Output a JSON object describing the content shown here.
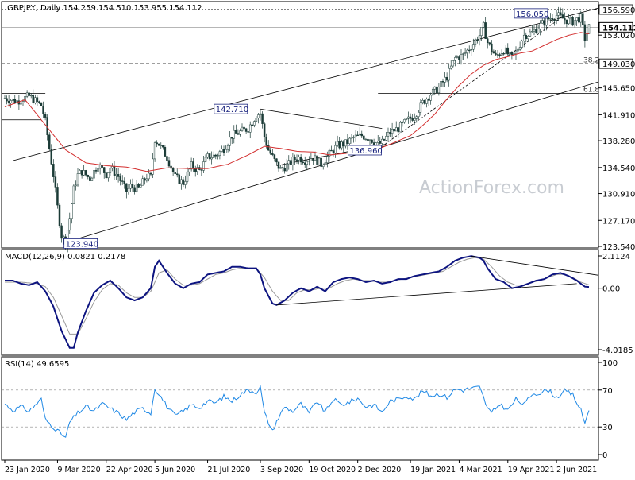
{
  "chart_data": {
    "type": "candlestick",
    "symbol_header": ".GBPJPY, Daily  154.259 154.510 153.955 154.112",
    "watermark": "ActionForex.com",
    "x_tick_labels": [
      "23 Jan 2020",
      "9 Mar 2020",
      "22 Apr 2020",
      "5 Jun 2020",
      "21 Jul 2020",
      "3 Sep 2020",
      "19 Oct 2020",
      "2 Dec 2020",
      "19 Jan 2021",
      "4 Mar 2021",
      "19 Apr 2021",
      "2 Jun 2021"
    ],
    "price_panel": {
      "ylim": [
        123.54,
        156.59
      ],
      "y_tick_labels": [
        "156.590",
        "153.020",
        "149.030",
        "145.650",
        "141.910",
        "138.280",
        "134.540",
        "130.910",
        "127.170",
        "123.540"
      ],
      "current_price": "154.112",
      "resistance": "156.590",
      "support": "149.030",
      "fib_levels": [
        {
          "label": "38.2",
          "value": 149.0
        },
        {
          "label": "61.8",
          "value": 144.9
        }
      ],
      "annotations": [
        {
          "label": "123.940",
          "value": 123.94
        },
        {
          "label": "142.710",
          "value": 142.71
        },
        {
          "label": "136.960",
          "value": 136.96
        },
        {
          "label": "156.050",
          "value": 156.05
        }
      ],
      "series_close": [
        [
          0,
          144.2
        ],
        [
          3,
          143.8
        ],
        [
          6,
          144.5
        ],
        [
          9,
          143.2
        ],
        [
          10,
          141.0
        ],
        [
          11,
          137.2
        ],
        [
          12,
          133.5
        ],
        [
          13,
          129.0
        ],
        [
          14,
          125.0
        ],
        [
          15,
          124.2
        ],
        [
          16,
          127.5
        ],
        [
          17,
          131.5
        ],
        [
          18,
          133.5
        ],
        [
          19,
          134.0
        ],
        [
          21,
          133.0
        ],
        [
          23,
          135.0
        ],
        [
          25,
          133.6
        ],
        [
          26,
          134.5
        ],
        [
          28,
          133.3
        ],
        [
          30,
          131.2
        ],
        [
          31,
          131.9
        ],
        [
          33,
          131.6
        ],
        [
          35,
          133.3
        ],
        [
          36,
          133.2
        ],
        [
          37,
          138.5
        ],
        [
          38,
          137.8
        ],
        [
          40,
          136.0
        ],
        [
          42,
          133.2
        ],
        [
          44,
          132.4
        ],
        [
          46,
          134.8
        ],
        [
          48,
          134.1
        ],
        [
          50,
          136.0
        ],
        [
          52,
          136.2
        ],
        [
          54,
          137.2
        ],
        [
          56,
          139.0
        ],
        [
          58,
          139.5
        ],
        [
          60,
          140.0
        ],
        [
          62,
          141.9
        ],
        [
          63,
          142.1
        ],
        [
          64,
          138.8
        ],
        [
          65,
          137.0
        ],
        [
          66,
          136.0
        ],
        [
          67,
          135.0
        ],
        [
          68,
          134.3
        ],
        [
          70,
          135.0
        ],
        [
          72,
          136.0
        ],
        [
          74,
          135.6
        ],
        [
          76,
          136.0
        ],
        [
          78,
          135.0
        ],
        [
          80,
          136.4
        ],
        [
          82,
          137.6
        ],
        [
          84,
          137.9
        ],
        [
          86,
          138.7
        ],
        [
          88,
          139.0
        ],
        [
          90,
          138.6
        ],
        [
          92,
          137.8
        ],
        [
          93,
          138.0
        ],
        [
          95,
          139.5
        ],
        [
          97,
          140.0
        ],
        [
          99,
          141.0
        ],
        [
          101,
          141.8
        ],
        [
          103,
          143.6
        ],
        [
          105,
          144.8
        ],
        [
          107,
          145.7
        ],
        [
          109,
          147.2
        ],
        [
          111,
          149.8
        ],
        [
          113,
          150.2
        ],
        [
          115,
          151.5
        ],
        [
          117,
          153.0
        ],
        [
          118,
          154.2
        ],
        [
          119,
          152.0
        ],
        [
          120,
          151.0
        ],
        [
          121,
          150.0
        ],
        [
          123,
          151.0
        ],
        [
          125,
          149.8
        ],
        [
          126,
          150.6
        ],
        [
          128,
          153.0
        ],
        [
          130,
          153.4
        ],
        [
          132,
          154.4
        ],
        [
          134,
          155.3
        ],
        [
          136,
          155.8
        ],
        [
          138,
          155.2
        ],
        [
          140,
          154.9
        ],
        [
          142,
          155.5
        ],
        [
          143,
          152.5
        ],
        [
          144,
          154.112
        ]
      ],
      "ma_series": [
        [
          0,
          143.0
        ],
        [
          5,
          144.0
        ],
        [
          10,
          140.5
        ],
        [
          15,
          137.0
        ],
        [
          20,
          135.2
        ],
        [
          25,
          134.8
        ],
        [
          30,
          134.6
        ],
        [
          35,
          134.0
        ],
        [
          40,
          134.5
        ],
        [
          45,
          134.4
        ],
        [
          50,
          134.4
        ],
        [
          55,
          135.0
        ],
        [
          60,
          136.3
        ],
        [
          64,
          137.5
        ],
        [
          68,
          137.2
        ],
        [
          72,
          136.8
        ],
        [
          76,
          136.7
        ],
        [
          80,
          136.3
        ],
        [
          84,
          136.5
        ],
        [
          88,
          137.0
        ],
        [
          92,
          137.1
        ],
        [
          95,
          137.8
        ],
        [
          100,
          139.0
        ],
        [
          103,
          140.4
        ],
        [
          106,
          142.0
        ],
        [
          109,
          144.1
        ],
        [
          112,
          146.0
        ],
        [
          115,
          147.6
        ],
        [
          118,
          148.8
        ],
        [
          121,
          149.6
        ],
        [
          124,
          150.0
        ],
        [
          127,
          150.5
        ],
        [
          130,
          150.8
        ],
        [
          133,
          151.6
        ],
        [
          136,
          152.4
        ],
        [
          139,
          153.0
        ],
        [
          142,
          153.4
        ],
        [
          144,
          153.2
        ]
      ]
    },
    "macd_panel": {
      "label": "MACD(12,26,9) 0.0821 0.2178",
      "ylim": [
        -4.0185,
        2.1124
      ],
      "y_tick_labels": [
        "2.1124",
        "0.00",
        "-4.0185"
      ],
      "macd_series": [
        [
          0,
          0.5
        ],
        [
          2,
          0.5
        ],
        [
          4,
          0.3
        ],
        [
          6,
          0.2
        ],
        [
          8,
          0.4
        ],
        [
          10,
          -0.2
        ],
        [
          12,
          -1.2
        ],
        [
          14,
          -2.8
        ],
        [
          16,
          -3.9
        ],
        [
          17,
          -3.9
        ],
        [
          18,
          -2.9
        ],
        [
          20,
          -1.5
        ],
        [
          22,
          -0.3
        ],
        [
          24,
          0.2
        ],
        [
          26,
          0.5
        ],
        [
          28,
          0.0
        ],
        [
          30,
          -0.6
        ],
        [
          32,
          -0.8
        ],
        [
          34,
          -0.6
        ],
        [
          36,
          0.0
        ],
        [
          37,
          1.4
        ],
        [
          38,
          1.8
        ],
        [
          40,
          1.0
        ],
        [
          42,
          0.3
        ],
        [
          44,
          0.0
        ],
        [
          46,
          0.3
        ],
        [
          48,
          0.4
        ],
        [
          50,
          0.9
        ],
        [
          52,
          1.0
        ],
        [
          54,
          1.1
        ],
        [
          56,
          1.4
        ],
        [
          58,
          1.4
        ],
        [
          60,
          1.3
        ],
        [
          62,
          1.3
        ],
        [
          63,
          0.9
        ],
        [
          64,
          0.0
        ],
        [
          65,
          -0.5
        ],
        [
          66,
          -1.0
        ],
        [
          67,
          -1.1
        ],
        [
          69,
          -0.8
        ],
        [
          71,
          -0.3
        ],
        [
          73,
          0.0
        ],
        [
          75,
          -0.2
        ],
        [
          77,
          0.1
        ],
        [
          79,
          -0.2
        ],
        [
          81,
          0.4
        ],
        [
          83,
          0.6
        ],
        [
          85,
          0.7
        ],
        [
          87,
          0.6
        ],
        [
          89,
          0.4
        ],
        [
          91,
          0.5
        ],
        [
          93,
          0.3
        ],
        [
          95,
          0.4
        ],
        [
          97,
          0.6
        ],
        [
          99,
          0.6
        ],
        [
          101,
          0.8
        ],
        [
          103,
          0.9
        ],
        [
          105,
          1.0
        ],
        [
          107,
          1.1
        ],
        [
          109,
          1.4
        ],
        [
          111,
          1.8
        ],
        [
          113,
          2.0
        ],
        [
          115,
          2.1
        ],
        [
          117,
          2.0
        ],
        [
          118,
          1.8
        ],
        [
          119,
          1.3
        ],
        [
          121,
          0.6
        ],
        [
          123,
          0.4
        ],
        [
          125,
          0.0
        ],
        [
          127,
          0.1
        ],
        [
          129,
          0.3
        ],
        [
          131,
          0.5
        ],
        [
          133,
          0.6
        ],
        [
          135,
          0.9
        ],
        [
          137,
          1.0
        ],
        [
          139,
          0.8
        ],
        [
          141,
          0.5
        ],
        [
          143,
          0.1
        ],
        [
          144,
          0.08
        ]
      ],
      "signal_series": [
        [
          0,
          0.4
        ],
        [
          4,
          0.4
        ],
        [
          8,
          0.3
        ],
        [
          10,
          0.1
        ],
        [
          12,
          -0.6
        ],
        [
          14,
          -1.8
        ],
        [
          16,
          -3.0
        ],
        [
          18,
          -3.0
        ],
        [
          20,
          -2.0
        ],
        [
          22,
          -0.9
        ],
        [
          24,
          -0.1
        ],
        [
          26,
          0.3
        ],
        [
          28,
          0.2
        ],
        [
          30,
          -0.3
        ],
        [
          32,
          -0.6
        ],
        [
          34,
          -0.6
        ],
        [
          36,
          -0.2
        ],
        [
          38,
          1.0
        ],
        [
          40,
          1.2
        ],
        [
          42,
          0.6
        ],
        [
          44,
          0.2
        ],
        [
          46,
          0.2
        ],
        [
          48,
          0.3
        ],
        [
          50,
          0.6
        ],
        [
          52,
          0.9
        ],
        [
          54,
          1.0
        ],
        [
          56,
          1.2
        ],
        [
          58,
          1.3
        ],
        [
          60,
          1.3
        ],
        [
          62,
          1.3
        ],
        [
          64,
          0.7
        ],
        [
          66,
          -0.2
        ],
        [
          68,
          -0.8
        ],
        [
          70,
          -0.8
        ],
        [
          72,
          -0.3
        ],
        [
          74,
          -0.1
        ],
        [
          76,
          -0.1
        ],
        [
          78,
          0.0
        ],
        [
          80,
          0.0
        ],
        [
          82,
          0.3
        ],
        [
          84,
          0.5
        ],
        [
          86,
          0.6
        ],
        [
          88,
          0.5
        ],
        [
          90,
          0.5
        ],
        [
          92,
          0.4
        ],
        [
          94,
          0.4
        ],
        [
          96,
          0.5
        ],
        [
          98,
          0.6
        ],
        [
          100,
          0.7
        ],
        [
          102,
          0.8
        ],
        [
          104,
          0.9
        ],
        [
          106,
          1.0
        ],
        [
          108,
          1.1
        ],
        [
          110,
          1.4
        ],
        [
          112,
          1.7
        ],
        [
          114,
          1.9
        ],
        [
          116,
          2.0
        ],
        [
          118,
          1.9
        ],
        [
          120,
          1.4
        ],
        [
          122,
          0.8
        ],
        [
          124,
          0.4
        ],
        [
          126,
          0.2
        ],
        [
          128,
          0.2
        ],
        [
          130,
          0.4
        ],
        [
          132,
          0.5
        ],
        [
          134,
          0.7
        ],
        [
          136,
          0.9
        ],
        [
          138,
          0.9
        ],
        [
          140,
          0.7
        ],
        [
          142,
          0.4
        ],
        [
          144,
          0.22
        ]
      ]
    },
    "rsi_panel": {
      "label": "RSI(14) 49.6595",
      "ylim": [
        0,
        100
      ],
      "y_tick_labels": [
        "100",
        "70",
        "30",
        "0"
      ],
      "rsi_series": [
        [
          0,
          55
        ],
        [
          2,
          48
        ],
        [
          4,
          52
        ],
        [
          6,
          47
        ],
        [
          8,
          56
        ],
        [
          9,
          60
        ],
        [
          10,
          38
        ],
        [
          12,
          30
        ],
        [
          14,
          22
        ],
        [
          15,
          18
        ],
        [
          16,
          35
        ],
        [
          18,
          45
        ],
        [
          20,
          52
        ],
        [
          22,
          47
        ],
        [
          24,
          55
        ],
        [
          26,
          50
        ],
        [
          28,
          45
        ],
        [
          30,
          38
        ],
        [
          32,
          46
        ],
        [
          34,
          50
        ],
        [
          36,
          45
        ],
        [
          37,
          72
        ],
        [
          38,
          66
        ],
        [
          40,
          52
        ],
        [
          42,
          42
        ],
        [
          44,
          47
        ],
        [
          46,
          54
        ],
        [
          48,
          51
        ],
        [
          50,
          58
        ],
        [
          52,
          56
        ],
        [
          54,
          63
        ],
        [
          56,
          58
        ],
        [
          58,
          65
        ],
        [
          60,
          70
        ],
        [
          62,
          68
        ],
        [
          63,
          73
        ],
        [
          64,
          45
        ],
        [
          65,
          35
        ],
        [
          66,
          25
        ],
        [
          67,
          36
        ],
        [
          69,
          52
        ],
        [
          71,
          47
        ],
        [
          73,
          55
        ],
        [
          75,
          45
        ],
        [
          77,
          58
        ],
        [
          79,
          46
        ],
        [
          81,
          60
        ],
        [
          83,
          54
        ],
        [
          85,
          57
        ],
        [
          87,
          61
        ],
        [
          89,
          52
        ],
        [
          91,
          54
        ],
        [
          93,
          46
        ],
        [
          95,
          58
        ],
        [
          97,
          60
        ],
        [
          99,
          64
        ],
        [
          101,
          60
        ],
        [
          103,
          69
        ],
        [
          105,
          64
        ],
        [
          107,
          66
        ],
        [
          109,
          62
        ],
        [
          111,
          71
        ],
        [
          113,
          70
        ],
        [
          115,
          72
        ],
        [
          117,
          73
        ],
        [
          118,
          62
        ],
        [
          119,
          50
        ],
        [
          120,
          45
        ],
        [
          122,
          55
        ],
        [
          124,
          48
        ],
        [
          126,
          60
        ],
        [
          128,
          54
        ],
        [
          130,
          66
        ],
        [
          132,
          67
        ],
        [
          134,
          70
        ],
        [
          136,
          62
        ],
        [
          138,
          69
        ],
        [
          140,
          65
        ],
        [
          142,
          48
        ],
        [
          143,
          34
        ],
        [
          144,
          49.66
        ]
      ]
    }
  }
}
